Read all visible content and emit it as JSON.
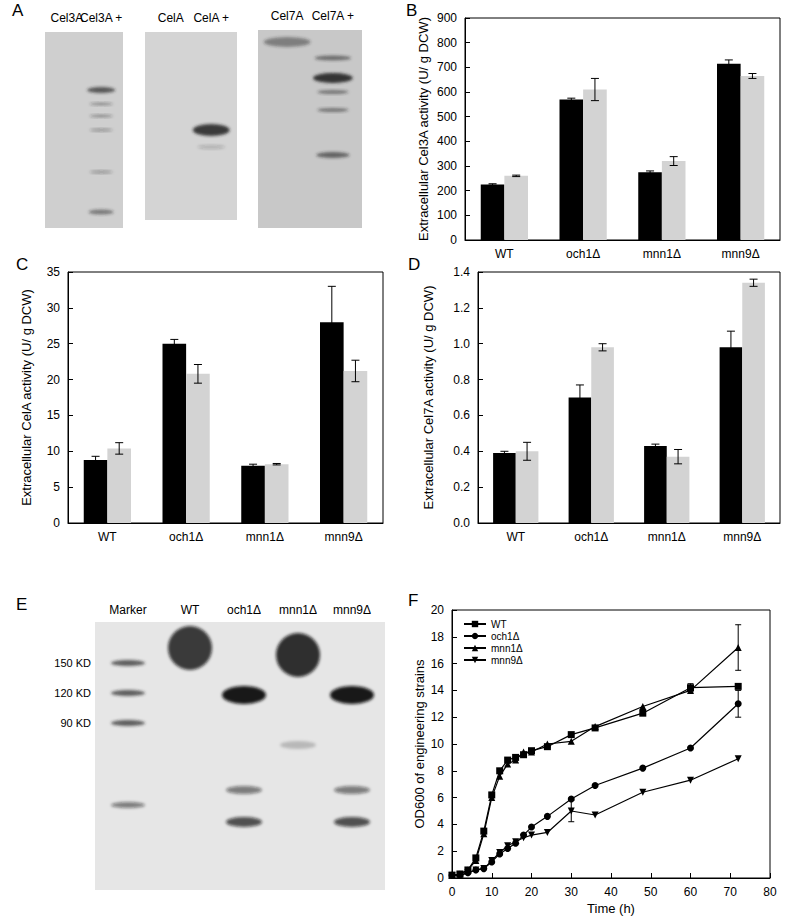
{
  "chart_data": [
    {
      "type": "blot",
      "title": "A",
      "blots": [
        {
          "lanes": [
            "Cel3A",
            "Cel3A +"
          ]
        },
        {
          "lanes": [
            "CelA",
            "CelA +"
          ]
        },
        {
          "lanes": [
            "Cel7A",
            "Cel7A +"
          ]
        }
      ]
    },
    {
      "type": "bar",
      "title": "B",
      "categories": [
        "WT",
        "och1Δ",
        "mnn1Δ",
        "mnn9Δ"
      ],
      "ylabel": "Extracellular Cel3A activity (U/ g DCW)",
      "ylim": [
        0,
        900
      ],
      "yticks": [
        0,
        100,
        200,
        300,
        400,
        500,
        600,
        700,
        800,
        900
      ],
      "grid": false,
      "series": [
        {
          "color": "#000000",
          "values": [
            225,
            570,
            275,
            715
          ],
          "errors": [
            3,
            5,
            5,
            15
          ]
        },
        {
          "color": "#d3d3d3",
          "values": [
            260,
            610,
            320,
            665
          ],
          "errors": [
            3,
            45,
            18,
            10
          ]
        }
      ]
    },
    {
      "type": "bar",
      "title": "C",
      "categories": [
        "WT",
        "och1Δ",
        "mnn1Δ",
        "mnn9Δ"
      ],
      "ylabel": "Extracellular CelA activity (U/ g DCW)",
      "ylim": [
        0,
        35
      ],
      "yticks": [
        0,
        5,
        10,
        15,
        20,
        25,
        30,
        35
      ],
      "grid": false,
      "series": [
        {
          "color": "#000000",
          "values": [
            8.8,
            25,
            8.0,
            28
          ],
          "errors": [
            0.5,
            0.6,
            0.2,
            5
          ]
        },
        {
          "color": "#d3d3d3",
          "values": [
            10.4,
            20.8,
            8.2,
            21.2
          ],
          "errors": [
            0.8,
            1.3,
            0.1,
            1.5
          ]
        }
      ]
    },
    {
      "type": "bar",
      "title": "D",
      "categories": [
        "WT",
        "och1Δ",
        "mnn1Δ",
        "mnn9Δ"
      ],
      "ylabel": "Extracellular Cel7A activity (U/ g DCW)",
      "ylim": [
        0,
        1.4
      ],
      "yticks": [
        {
          "value": 0,
          "label": "0.0"
        },
        0.2,
        0.4,
        0.6,
        0.8,
        {
          "value": 1,
          "label": "1.0"
        },
        1.2,
        1.4
      ],
      "grid": false,
      "series": [
        {
          "color": "#000000",
          "values": [
            0.39,
            0.7,
            0.43,
            0.98
          ],
          "errors": [
            0.01,
            0.07,
            0.01,
            0.09
          ]
        },
        {
          "color": "#d3d3d3",
          "values": [
            0.4,
            0.98,
            0.37,
            1.34
          ],
          "errors": [
            0.05,
            0.02,
            0.04,
            0.02
          ]
        }
      ]
    },
    {
      "type": "blot",
      "title": "E",
      "lanes": [
        "Marker",
        "WT",
        "och1Δ",
        "mnn1Δ",
        "mnn9Δ"
      ],
      "markers": [
        {
          "value": 150,
          "label": "150 KD"
        },
        {
          "value": 120,
          "label": "120 KD"
        },
        {
          "value": 90,
          "label": "90 KD"
        }
      ]
    },
    {
      "type": "line",
      "title": "F",
      "xlabel": "Time (h)",
      "ylabel": "OD600 of engineering strains",
      "xlim": [
        0,
        80
      ],
      "xticks": [
        0,
        10,
        20,
        30,
        40,
        50,
        60,
        70,
        80
      ],
      "ylim": [
        0,
        20
      ],
      "yticks": [
        0,
        2,
        4,
        6,
        8,
        10,
        12,
        14,
        16,
        18,
        20
      ],
      "grid": false,
      "legend": "upper left",
      "series": [
        {
          "name": "WT",
          "color": "#000000",
          "marker": "square",
          "x": [
            0,
            2,
            4,
            6,
            8,
            10,
            12,
            14,
            16,
            18,
            20,
            24,
            30,
            36,
            48,
            60,
            72
          ],
          "values": [
            0.2,
            0.3,
            0.6,
            1.5,
            3.5,
            6.2,
            8.0,
            8.8,
            9.0,
            9.2,
            9.5,
            9.8,
            10.7,
            11.2,
            12.3,
            14.2,
            14.3
          ],
          "errors": [
            null,
            null,
            null,
            null,
            null,
            null,
            null,
            null,
            null,
            null,
            null,
            null,
            null,
            null,
            null,
            0.3,
            null
          ]
        },
        {
          "name": "och1Δ",
          "color": "#000000",
          "marker": "circle",
          "x": [
            0,
            2,
            4,
            6,
            8,
            10,
            12,
            14,
            16,
            18,
            20,
            24,
            30,
            36,
            48,
            60,
            72
          ],
          "values": [
            0.2,
            0.2,
            0.4,
            0.6,
            0.7,
            1.2,
            1.8,
            2.2,
            2.6,
            3.2,
            3.8,
            4.6,
            5.9,
            6.9,
            8.2,
            9.7,
            13.0
          ],
          "errors": [
            null,
            null,
            null,
            null,
            null,
            null,
            null,
            null,
            null,
            null,
            null,
            null,
            null,
            null,
            null,
            null,
            1.0
          ]
        },
        {
          "name": "mnn1Δ",
          "color": "#000000",
          "marker": "triangle",
          "x": [
            0,
            2,
            4,
            6,
            8,
            10,
            12,
            14,
            16,
            18,
            20,
            24,
            30,
            36,
            48,
            60,
            72
          ],
          "values": [
            0.2,
            0.3,
            0.6,
            1.3,
            3.3,
            6.0,
            7.6,
            8.5,
            8.8,
            9.4,
            9.4,
            10.0,
            10.2,
            11.3,
            12.8,
            14.0,
            17.2
          ],
          "errors": [
            null,
            null,
            null,
            null,
            null,
            null,
            null,
            null,
            null,
            null,
            null,
            null,
            null,
            null,
            null,
            null,
            1.7
          ]
        },
        {
          "name": "mnn9Δ",
          "color": "#000000",
          "marker": "triangle-down",
          "x": [
            0,
            2,
            4,
            6,
            8,
            10,
            12,
            14,
            16,
            18,
            20,
            24,
            30,
            36,
            48,
            60,
            72
          ],
          "values": [
            0.2,
            0.2,
            0.4,
            0.6,
            0.7,
            1.3,
            1.9,
            2.4,
            2.7,
            3.0,
            3.2,
            3.4,
            5.0,
            4.7,
            6.4,
            7.3,
            8.9
          ],
          "errors": [
            null,
            null,
            null,
            null,
            null,
            null,
            null,
            null,
            null,
            null,
            null,
            null,
            0.8,
            null,
            null,
            null,
            null
          ]
        }
      ]
    }
  ]
}
